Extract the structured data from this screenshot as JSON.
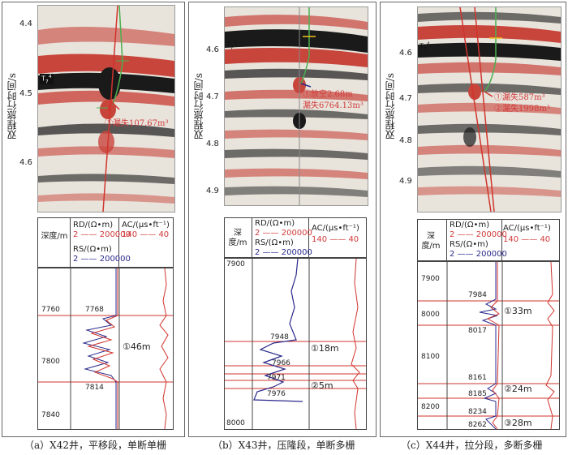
{
  "panels": [
    {
      "y_axis_label": "双程旅行时间/s",
      "time_ticks": [
        "4.4",
        "4.5",
        "4.6"
      ],
      "horizon_label": "T",
      "horizon_sub": "7",
      "horizon_sup": "4",
      "annotation": "①漏失107.67m³",
      "log_header": {
        "depth_label": "深度/m",
        "rd_label": "RD/(Ω•m)",
        "rd_range": "2 —— 200000",
        "rs_label": "RS/(Ω•m)",
        "rs_range": "2 —— 200000",
        "ac_label": "AC/(μs•ft⁻¹)",
        "ac_range": "140 —— 40"
      },
      "depth_ticks": [
        "7760",
        "7800",
        "7840"
      ],
      "depth_marks": [
        "7768",
        "7814"
      ],
      "zones": [
        "①46m"
      ],
      "caption": "（a）X42井，平移段，单断单栅"
    },
    {
      "y_axis_label": "双程旅行时间/s",
      "time_ticks": [
        "4.6",
        "4.7",
        "4.8",
        "4.9"
      ],
      "horizon_label": "T",
      "horizon_sub": "7",
      "horizon_sup": "4",
      "annotation_line1": "①放空2.68m",
      "annotation_line2": "漏失6764.13m³",
      "log_header": {
        "depth_label": "深度/m",
        "rd_label": "RD/(Ω•m)",
        "rd_range": "2 —— 200000",
        "rs_label": "RS/(Ω•m)",
        "rs_range": "2 —— 200000",
        "ac_label": "AC/(μs•ft⁻¹)",
        "ac_range": "140 —— 40"
      },
      "depth_ticks": [
        "7900",
        "8000"
      ],
      "depth_marks": [
        "7948",
        "7966",
        "7971",
        "7976"
      ],
      "zones": [
        "①18m",
        "②5m"
      ],
      "caption": "（b）X43井，压隆段，单断多栅"
    },
    {
      "y_axis_label": "双程旅行时间/s",
      "time_ticks": [
        "4.6",
        "4.7",
        "4.8",
        "4.9"
      ],
      "horizon_label": "T",
      "horizon_sub": "7",
      "horizon_sup": "4",
      "annotation_line1": "①漏失587m³",
      "annotation_line2": "②漏失1998m³",
      "log_header": {
        "depth_label": "深度/m",
        "rd_label": "RD/(Ω•m)",
        "rd_range": "2 —— 200000",
        "rs_label": "RS/(Ω•m)",
        "rs_range": "2 —— 200000",
        "ac_label": "AC/(μs•ft⁻¹)",
        "ac_range": "140 —— 40"
      },
      "depth_ticks": [
        "7900",
        "8000",
        "8100",
        "8200"
      ],
      "depth_marks": [
        "7984",
        "8017",
        "8161",
        "8185",
        "8234",
        "8262"
      ],
      "zones": [
        "①33m",
        "②24m",
        "③28m"
      ],
      "caption": "（c）X44井，拉分段，多断多栅"
    }
  ],
  "colors": {
    "red": "#d0342c",
    "blue": "#2a2a8c",
    "green": "#4caf50",
    "seismic_red": "#c8453c",
    "seismic_black": "#1a1a1a"
  }
}
